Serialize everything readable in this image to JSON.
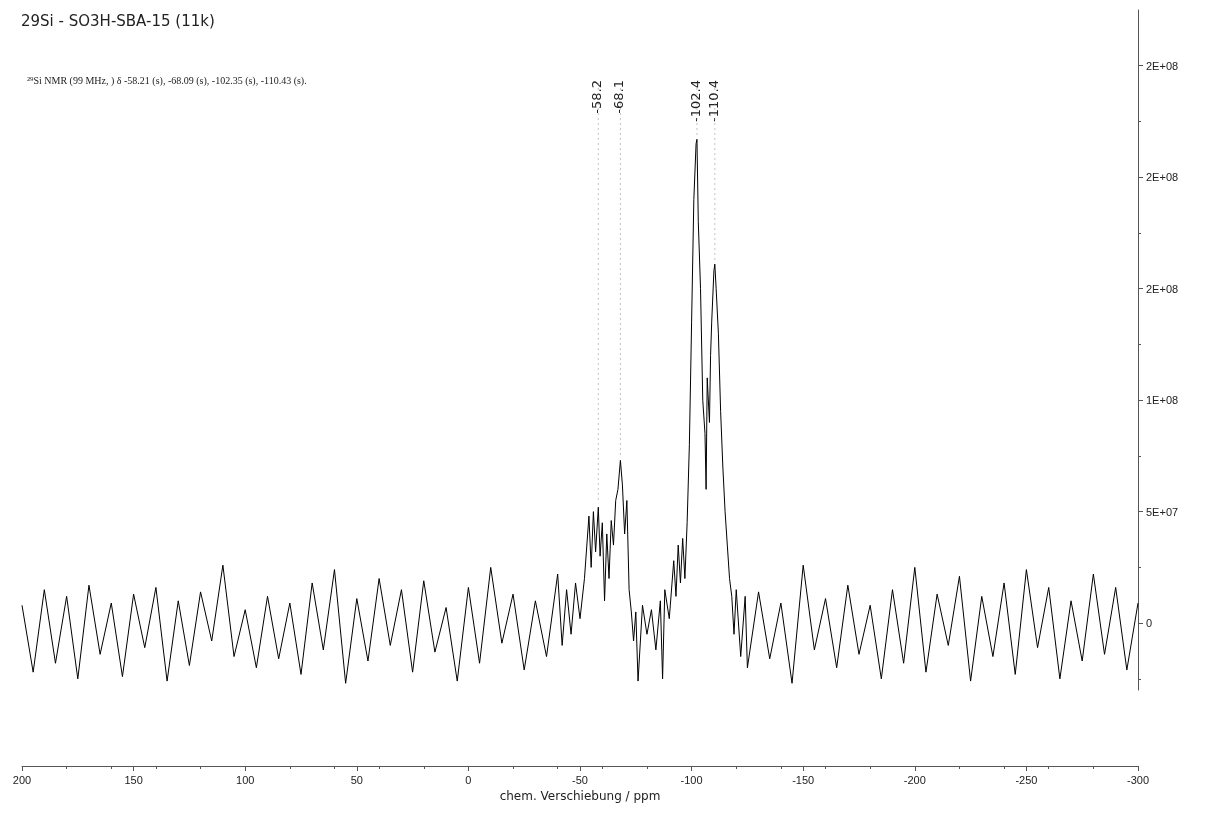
{
  "chart_data": {
    "type": "line",
    "title": "29Si - SO3H-SBA-15 (11k)",
    "subtitle": "²⁹Si NMR (99 MHz, ) δ -58.21 (s), -68.09 (s), -102.35 (s), -110.43 (s).",
    "xlabel": "chem. Verschiebung / ppm",
    "series": [
      {
        "color": "#000000",
        "x": [
          200,
          195,
          190,
          185,
          180,
          175,
          170,
          165,
          160,
          155,
          150,
          145,
          140,
          135,
          130,
          125,
          120,
          115,
          110,
          105,
          100,
          95,
          90,
          85,
          80,
          75,
          70,
          65,
          60,
          55,
          50,
          45,
          40,
          35,
          30,
          25,
          20,
          15,
          10,
          5,
          0,
          -5,
          -10,
          -15,
          -20,
          -25,
          -30,
          -35,
          -40,
          -42,
          -44,
          -46,
          -48,
          -50,
          -52,
          -54,
          -55,
          -56,
          -57,
          -58.2,
          -59,
          -60,
          -61,
          -62,
          -63,
          -64,
          -65,
          -66,
          -67,
          -68.1,
          -69,
          -70,
          -71,
          -72,
          -73,
          -74,
          -75,
          -76,
          -78,
          -80,
          -82,
          -84,
          -86,
          -87,
          -88,
          -90,
          -92,
          -93,
          -94,
          -95,
          -96,
          -97,
          -98,
          -99,
          -100,
          -101,
          -102,
          -102.4,
          -103,
          -104,
          -105,
          -106,
          -106.5,
          -107,
          -108,
          -108.5,
          -109,
          -110,
          -110.4,
          -111,
          -112,
          -113,
          -114,
          -115,
          -116,
          -117,
          -118,
          -119,
          -120,
          -122,
          -124,
          -125,
          -130,
          -135,
          -140,
          -145,
          -150,
          -155,
          -160,
          -165,
          -170,
          -175,
          -180,
          -185,
          -190,
          -195,
          -200,
          -205,
          -210,
          -215,
          -220,
          -225,
          -230,
          -235,
          -240,
          -245,
          -250,
          -255,
          -260,
          -265,
          -270,
          -275,
          -280,
          -285,
          -290,
          -295,
          -300
        ],
        "values": [
          8000000.0,
          -22000000.0,
          15000000.0,
          -18000000.0,
          12000000.0,
          -25000000.0,
          17000000.0,
          -14000000.0,
          9000000.0,
          -24000000.0,
          13000000.0,
          -11000000.0,
          16000000.0,
          -26000000.0,
          10000000.0,
          -19000000.0,
          14000000.0,
          -8000000.0,
          26000000.0,
          -15000000.0,
          6000000.0,
          -20000000.0,
          12000000.0,
          -16000000.0,
          9000000.0,
          -23000000.0,
          18000000.0,
          -12000000.0,
          24000000.0,
          -27000000.0,
          11000000.0,
          -17000000.0,
          20000000.0,
          -10000000.0,
          15000000.0,
          -22000000.0,
          19000000.0,
          -13000000.0,
          7000000.0,
          -26000000.0,
          16000000.0,
          -18000000.0,
          25000000.0,
          -9000000.0,
          13000000.0,
          -21000000.0,
          10000000.0,
          -15000000.0,
          22000000.0,
          -10000000.0,
          15000000.0,
          -5000000.0,
          18000000.0,
          2000000.0,
          20000000.0,
          48000000.0,
          25000000.0,
          50000000.0,
          32000000.0,
          52000000.0,
          30000000.0,
          45000000.0,
          10000000.0,
          40000000.0,
          20000000.0,
          46000000.0,
          35000000.0,
          55000000.0,
          60000000.0,
          73000000.0,
          62000000.0,
          40000000.0,
          55000000.0,
          15000000.0,
          5000000.0,
          -8000000.0,
          5000000.0,
          -26000000.0,
          8000000.0,
          -5000000.0,
          6000000.0,
          -12000000.0,
          10000000.0,
          -25000000.0,
          15000000.0,
          2000000.0,
          28000000.0,
          12000000.0,
          35000000.0,
          18000000.0,
          38000000.0,
          20000000.0,
          45000000.0,
          80000000.0,
          135000000.0,
          190000000.0,
          215000000.0,
          217000000.0,
          180000000.0,
          150000000.0,
          100000000.0,
          85000000.0,
          60000000.0,
          110000000.0,
          90000000.0,
          120000000.0,
          135000000.0,
          158000000.0,
          161000000.0,
          150000000.0,
          130000000.0,
          95000000.0,
          70000000.0,
          50000000.0,
          35000000.0,
          20000000.0,
          12000000.0,
          -5000000.0,
          15000000.0,
          -15000000.0,
          12000000.0,
          -20000000.0,
          14000000.0,
          -16000000.0,
          9000000.0,
          -27000000.0,
          26000000.0,
          -12000000.0,
          11000000.0,
          -20000000.0,
          17000000.0,
          -14000000.0,
          8000000.0,
          -25000000.0,
          15000000.0,
          -18000000.0,
          25000000.0,
          -22000000.0,
          13000000.0,
          -10000000.0,
          21000000.0,
          -26000000.0,
          12000000.0,
          -15000000.0,
          18000000.0,
          -23000000.0,
          24000000.0,
          -11000000.0,
          16000000.0,
          -25000000.0,
          10000000.0,
          -17000000.0,
          22000000.0,
          -14000000.0,
          16000000.0,
          -21000000.0,
          9000000.0
        ]
      }
    ],
    "xlim": [
      200,
      -300
    ],
    "xticks": [
      200,
      150,
      100,
      50,
      0,
      -50,
      -100,
      -150,
      -200,
      -250,
      -300
    ],
    "ylim": [
      -30000000.0,
      275000000.0
    ],
    "yticks": [
      0,
      {
        "value": 50000000.0,
        "label": "5E+07"
      },
      {
        "value": 100000000.0,
        "label": "1E+08"
      },
      {
        "value": 150000000.0,
        "label": "2E+08"
      },
      {
        "value": 200000000.0,
        "label": "2E+08"
      },
      {
        "value": 250000000.0,
        "label": "2E+08"
      }
    ],
    "annotations": [
      {
        "text": "-58.2",
        "x": -58.2,
        "y": 52000000.0
      },
      {
        "text": "-68.1",
        "x": -68.1,
        "y": 73000000.0
      },
      {
        "text": "-102.4",
        "x": -102.4,
        "y": 217000000.0
      },
      {
        "text": "-110.4",
        "x": -110.4,
        "y": 161000000.0
      }
    ],
    "marker": "none",
    "line_style": "solid"
  }
}
